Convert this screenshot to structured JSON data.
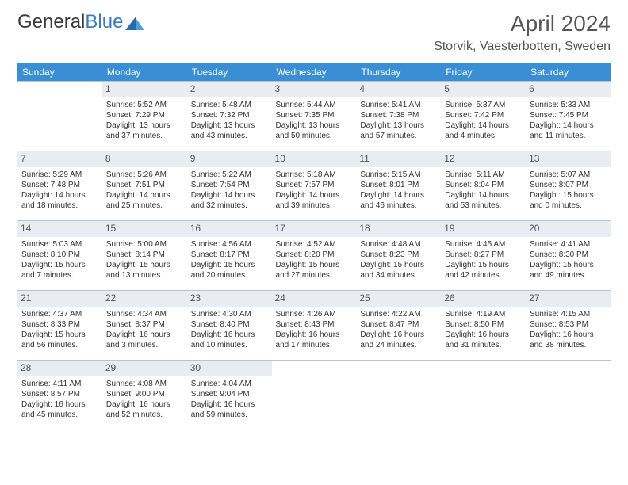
{
  "brand": {
    "part1": "General",
    "part2": "Blue"
  },
  "title": "April 2024",
  "location": "Storvik, Vaesterbotten, Sweden",
  "colors": {
    "header_bg": "#3a8fd4",
    "daynum_bg": "#e9edf1",
    "border": "#b8c4ce",
    "text": "#333333",
    "brand_blue": "#3a7bbf",
    "brand_gray": "#6a6a6a"
  },
  "weekdays": [
    "Sunday",
    "Monday",
    "Tuesday",
    "Wednesday",
    "Thursday",
    "Friday",
    "Saturday"
  ],
  "weeks": [
    [
      null,
      {
        "n": "1",
        "sr": "Sunrise: 5:52 AM",
        "ss": "Sunset: 7:29 PM",
        "d1": "Daylight: 13 hours",
        "d2": "and 37 minutes."
      },
      {
        "n": "2",
        "sr": "Sunrise: 5:48 AM",
        "ss": "Sunset: 7:32 PM",
        "d1": "Daylight: 13 hours",
        "d2": "and 43 minutes."
      },
      {
        "n": "3",
        "sr": "Sunrise: 5:44 AM",
        "ss": "Sunset: 7:35 PM",
        "d1": "Daylight: 13 hours",
        "d2": "and 50 minutes."
      },
      {
        "n": "4",
        "sr": "Sunrise: 5:41 AM",
        "ss": "Sunset: 7:38 PM",
        "d1": "Daylight: 13 hours",
        "d2": "and 57 minutes."
      },
      {
        "n": "5",
        "sr": "Sunrise: 5:37 AM",
        "ss": "Sunset: 7:42 PM",
        "d1": "Daylight: 14 hours",
        "d2": "and 4 minutes."
      },
      {
        "n": "6",
        "sr": "Sunrise: 5:33 AM",
        "ss": "Sunset: 7:45 PM",
        "d1": "Daylight: 14 hours",
        "d2": "and 11 minutes."
      }
    ],
    [
      {
        "n": "7",
        "sr": "Sunrise: 5:29 AM",
        "ss": "Sunset: 7:48 PM",
        "d1": "Daylight: 14 hours",
        "d2": "and 18 minutes."
      },
      {
        "n": "8",
        "sr": "Sunrise: 5:26 AM",
        "ss": "Sunset: 7:51 PM",
        "d1": "Daylight: 14 hours",
        "d2": "and 25 minutes."
      },
      {
        "n": "9",
        "sr": "Sunrise: 5:22 AM",
        "ss": "Sunset: 7:54 PM",
        "d1": "Daylight: 14 hours",
        "d2": "and 32 minutes."
      },
      {
        "n": "10",
        "sr": "Sunrise: 5:18 AM",
        "ss": "Sunset: 7:57 PM",
        "d1": "Daylight: 14 hours",
        "d2": "and 39 minutes."
      },
      {
        "n": "11",
        "sr": "Sunrise: 5:15 AM",
        "ss": "Sunset: 8:01 PM",
        "d1": "Daylight: 14 hours",
        "d2": "and 46 minutes."
      },
      {
        "n": "12",
        "sr": "Sunrise: 5:11 AM",
        "ss": "Sunset: 8:04 PM",
        "d1": "Daylight: 14 hours",
        "d2": "and 53 minutes."
      },
      {
        "n": "13",
        "sr": "Sunrise: 5:07 AM",
        "ss": "Sunset: 8:07 PM",
        "d1": "Daylight: 15 hours",
        "d2": "and 0 minutes."
      }
    ],
    [
      {
        "n": "14",
        "sr": "Sunrise: 5:03 AM",
        "ss": "Sunset: 8:10 PM",
        "d1": "Daylight: 15 hours",
        "d2": "and 7 minutes."
      },
      {
        "n": "15",
        "sr": "Sunrise: 5:00 AM",
        "ss": "Sunset: 8:14 PM",
        "d1": "Daylight: 15 hours",
        "d2": "and 13 minutes."
      },
      {
        "n": "16",
        "sr": "Sunrise: 4:56 AM",
        "ss": "Sunset: 8:17 PM",
        "d1": "Daylight: 15 hours",
        "d2": "and 20 minutes."
      },
      {
        "n": "17",
        "sr": "Sunrise: 4:52 AM",
        "ss": "Sunset: 8:20 PM",
        "d1": "Daylight: 15 hours",
        "d2": "and 27 minutes."
      },
      {
        "n": "18",
        "sr": "Sunrise: 4:48 AM",
        "ss": "Sunset: 8:23 PM",
        "d1": "Daylight: 15 hours",
        "d2": "and 34 minutes."
      },
      {
        "n": "19",
        "sr": "Sunrise: 4:45 AM",
        "ss": "Sunset: 8:27 PM",
        "d1": "Daylight: 15 hours",
        "d2": "and 42 minutes."
      },
      {
        "n": "20",
        "sr": "Sunrise: 4:41 AM",
        "ss": "Sunset: 8:30 PM",
        "d1": "Daylight: 15 hours",
        "d2": "and 49 minutes."
      }
    ],
    [
      {
        "n": "21",
        "sr": "Sunrise: 4:37 AM",
        "ss": "Sunset: 8:33 PM",
        "d1": "Daylight: 15 hours",
        "d2": "and 56 minutes."
      },
      {
        "n": "22",
        "sr": "Sunrise: 4:34 AM",
        "ss": "Sunset: 8:37 PM",
        "d1": "Daylight: 16 hours",
        "d2": "and 3 minutes."
      },
      {
        "n": "23",
        "sr": "Sunrise: 4:30 AM",
        "ss": "Sunset: 8:40 PM",
        "d1": "Daylight: 16 hours",
        "d2": "and 10 minutes."
      },
      {
        "n": "24",
        "sr": "Sunrise: 4:26 AM",
        "ss": "Sunset: 8:43 PM",
        "d1": "Daylight: 16 hours",
        "d2": "and 17 minutes."
      },
      {
        "n": "25",
        "sr": "Sunrise: 4:22 AM",
        "ss": "Sunset: 8:47 PM",
        "d1": "Daylight: 16 hours",
        "d2": "and 24 minutes."
      },
      {
        "n": "26",
        "sr": "Sunrise: 4:19 AM",
        "ss": "Sunset: 8:50 PM",
        "d1": "Daylight: 16 hours",
        "d2": "and 31 minutes."
      },
      {
        "n": "27",
        "sr": "Sunrise: 4:15 AM",
        "ss": "Sunset: 8:53 PM",
        "d1": "Daylight: 16 hours",
        "d2": "and 38 minutes."
      }
    ],
    [
      {
        "n": "28",
        "sr": "Sunrise: 4:11 AM",
        "ss": "Sunset: 8:57 PM",
        "d1": "Daylight: 16 hours",
        "d2": "and 45 minutes."
      },
      {
        "n": "29",
        "sr": "Sunrise: 4:08 AM",
        "ss": "Sunset: 9:00 PM",
        "d1": "Daylight: 16 hours",
        "d2": "and 52 minutes."
      },
      {
        "n": "30",
        "sr": "Sunrise: 4:04 AM",
        "ss": "Sunset: 9:04 PM",
        "d1": "Daylight: 16 hours",
        "d2": "and 59 minutes."
      },
      null,
      null,
      null,
      null
    ]
  ]
}
